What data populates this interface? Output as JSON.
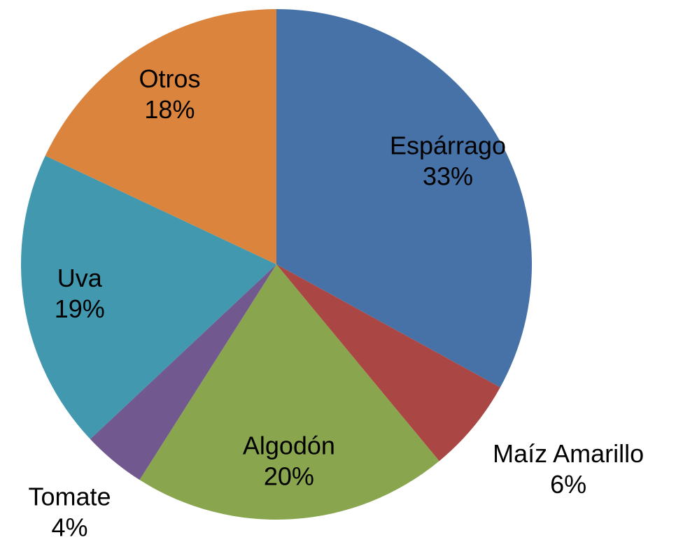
{
  "chart_data": {
    "type": "pie",
    "categories": [
      "Espárrago",
      "Maíz Amarillo",
      "Algodón",
      "Tomate",
      "Uva",
      "Otros"
    ],
    "values": [
      33,
      6,
      20,
      4,
      19,
      18
    ],
    "value_labels": [
      "33%",
      "6%",
      "20%",
      "4%",
      "19%",
      "18%"
    ],
    "colors": [
      "#4672a8",
      "#aa4644",
      "#89a54e",
      "#71588f",
      "#4198af",
      "#db843d"
    ]
  }
}
